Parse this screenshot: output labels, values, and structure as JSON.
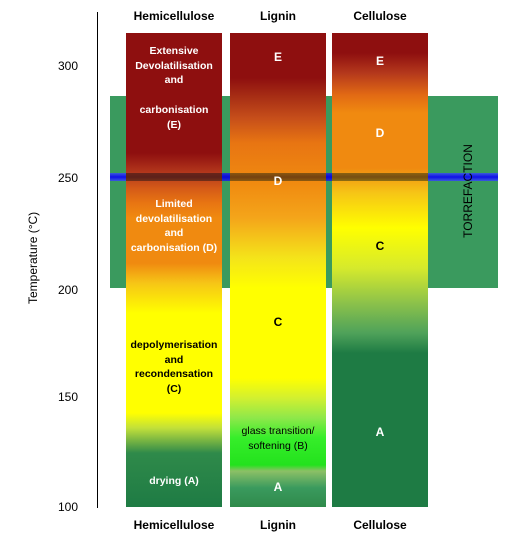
{
  "columns": {
    "hemicellulose": {
      "header": "Hemicellulose",
      "footer": "Hemicellulose",
      "stage_e_1": "Extensive\nDevolatilisation\nand",
      "stage_e_2": "carbonisation\n(E)",
      "stage_d": "Limited\ndevolatilisation\nand\ncarbonisation (D)",
      "stage_c": "depolymerisation\nand\nrecondensation\n(C)",
      "stage_a": "drying (A)"
    },
    "lignin": {
      "header": "Lignin",
      "footer": "Lignin",
      "stage_e": "E",
      "stage_d": "D",
      "stage_c": "C",
      "stage_b": "glass transition/\nsoftening (B)",
      "stage_a": "A"
    },
    "cellulose": {
      "header": "Cellulose",
      "footer": "Cellulose",
      "stage_e": "E",
      "stage_d": "D",
      "stage_c": "C",
      "stage_a": "A"
    }
  },
  "y_axis": {
    "title": "Temperature (°C)",
    "ticks": [
      "300",
      "250",
      "200",
      "150",
      "100"
    ]
  },
  "torrefaction": {
    "label": "TORREFACTION",
    "range_celsius": [
      200,
      285
    ],
    "marker_celsius": 250,
    "band_color": "#3a9a5e",
    "marker_color": "#1010e8"
  },
  "colors": {
    "stage_e": "#8e0f0f",
    "stage_d": "#f08a10",
    "stage_c": "#ffff00",
    "stage_b": "#23e21d",
    "stage_a": "#1e7b44"
  }
}
